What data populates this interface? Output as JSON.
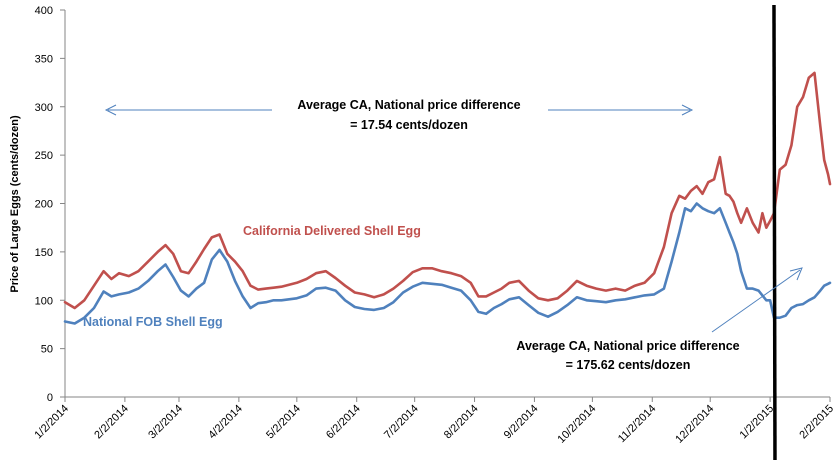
{
  "colors": {
    "california": "#c0504d",
    "national": "#4f81bd",
    "divider": "#000000",
    "arrow": "#4f81bd",
    "axis": "#868686",
    "tick": "#868686"
  },
  "chart_data": {
    "type": "line",
    "title": "",
    "xlabel": "",
    "ylabel": "Price of Large Eggs  (cents/dozen)",
    "ylim": [
      0,
      400
    ],
    "yticks": [
      0,
      50,
      100,
      150,
      200,
      250,
      300,
      350,
      400
    ],
    "x_range_days": [
      0,
      396
    ],
    "x_unit": "days since 1/2/2014",
    "xticks": [
      {
        "label": "1/2/2014",
        "day": 0
      },
      {
        "label": "2/2/2014",
        "day": 31
      },
      {
        "label": "3/2/2014",
        "day": 59
      },
      {
        "label": "4/2/2014",
        "day": 90
      },
      {
        "label": "5/2/2014",
        "day": 120
      },
      {
        "label": "6/2/2014",
        "day": 151
      },
      {
        "label": "7/2/2014",
        "day": 181
      },
      {
        "label": "8/2/2014",
        "day": 212
      },
      {
        "label": "9/2/2014",
        "day": 243
      },
      {
        "label": "10/2/2014",
        "day": 273
      },
      {
        "label": "11/2/2014",
        "day": 304
      },
      {
        "label": "12/2/2014",
        "day": 334
      },
      {
        "label": "1/2/2015",
        "day": 365
      },
      {
        "label": "2/2/2015",
        "day": 396
      }
    ],
    "series": [
      {
        "name": "California Delivered Shell Egg",
        "key": "california",
        "x": [
          0,
          5,
          10,
          15,
          20,
          24,
          28,
          33,
          38,
          43,
          48,
          52,
          56,
          60,
          64,
          68,
          72,
          76,
          80,
          84,
          88,
          92,
          96,
          100,
          104,
          108,
          112,
          116,
          120,
          125,
          130,
          135,
          140,
          145,
          150,
          155,
          160,
          165,
          170,
          175,
          180,
          185,
          190,
          195,
          200,
          205,
          210,
          214,
          218,
          222,
          226,
          230,
          235,
          240,
          245,
          250,
          255,
          260,
          265,
          270,
          275,
          280,
          285,
          290,
          295,
          300,
          305,
          310,
          314,
          318,
          321,
          324,
          327,
          330,
          333,
          336,
          339,
          342,
          344,
          346,
          348,
          350,
          353,
          356,
          359,
          361,
          363,
          365,
          367,
          370,
          373,
          376,
          379,
          382,
          385,
          388,
          391,
          393,
          395,
          396
        ],
        "values": [
          98,
          92,
          100,
          115,
          130,
          122,
          128,
          125,
          130,
          140,
          150,
          157,
          148,
          130,
          128,
          140,
          153,
          165,
          168,
          148,
          140,
          130,
          115,
          111,
          112,
          113,
          114,
          116,
          118,
          122,
          128,
          130,
          123,
          115,
          108,
          106,
          103,
          106,
          112,
          120,
          129,
          133,
          133,
          130,
          128,
          125,
          118,
          104,
          104,
          108,
          112,
          118,
          120,
          110,
          102,
          100,
          102,
          110,
          120,
          115,
          112,
          110,
          112,
          110,
          115,
          118,
          128,
          155,
          190,
          208,
          205,
          213,
          218,
          210,
          222,
          225,
          248,
          210,
          208,
          202,
          190,
          180,
          195,
          180,
          170,
          190,
          175,
          182,
          190,
          235,
          240,
          260,
          300,
          310,
          330,
          335,
          280,
          245,
          230,
          220
        ]
      },
      {
        "name": "National FOB Shell Egg",
        "key": "national",
        "x": [
          0,
          5,
          10,
          15,
          20,
          24,
          28,
          33,
          38,
          43,
          48,
          52,
          56,
          60,
          64,
          68,
          72,
          76,
          80,
          84,
          88,
          92,
          96,
          100,
          104,
          108,
          112,
          116,
          120,
          125,
          130,
          135,
          140,
          145,
          150,
          155,
          160,
          165,
          170,
          175,
          180,
          185,
          190,
          195,
          200,
          205,
          210,
          214,
          218,
          222,
          226,
          230,
          235,
          240,
          245,
          250,
          255,
          260,
          265,
          270,
          275,
          280,
          285,
          290,
          295,
          300,
          305,
          310,
          314,
          318,
          321,
          324,
          327,
          330,
          333,
          336,
          339,
          342,
          344,
          346,
          348,
          350,
          353,
          356,
          359,
          361,
          363,
          365,
          367,
          370,
          373,
          376,
          379,
          382,
          385,
          388,
          391,
          393,
          395,
          396
        ],
        "values": [
          78,
          76,
          82,
          92,
          109,
          104,
          106,
          108,
          112,
          120,
          130,
          137,
          124,
          110,
          104,
          112,
          118,
          142,
          152,
          140,
          120,
          104,
          92,
          97,
          98,
          100,
          100,
          101,
          102,
          105,
          112,
          113,
          110,
          100,
          93,
          91,
          90,
          92,
          98,
          108,
          114,
          118,
          117,
          116,
          113,
          110,
          100,
          88,
          86,
          92,
          96,
          101,
          103,
          95,
          87,
          83,
          88,
          95,
          103,
          100,
          99,
          98,
          100,
          101,
          103,
          105,
          106,
          112,
          140,
          170,
          195,
          192,
          200,
          195,
          192,
          190,
          195,
          180,
          170,
          160,
          148,
          130,
          112,
          112,
          110,
          105,
          100,
          100,
          82,
          82,
          84,
          92,
          95,
          96,
          100,
          103,
          110,
          115,
          117,
          118
        ]
      }
    ],
    "vertical_line_day": 367,
    "annotations": [
      {
        "key": "top_line1",
        "text": "Average CA, National price difference"
      },
      {
        "key": "top_line2",
        "text": "= 17.54 cents/dozen"
      },
      {
        "key": "bottom_line1",
        "text": "Average CA, National price difference"
      },
      {
        "key": "bottom_line2",
        "text": "= 175.62 cents/dozen"
      }
    ],
    "series_labels": [
      {
        "key": "california",
        "text": "California Delivered Shell Egg"
      },
      {
        "key": "national",
        "text": "National FOB Shell Egg"
      }
    ]
  }
}
